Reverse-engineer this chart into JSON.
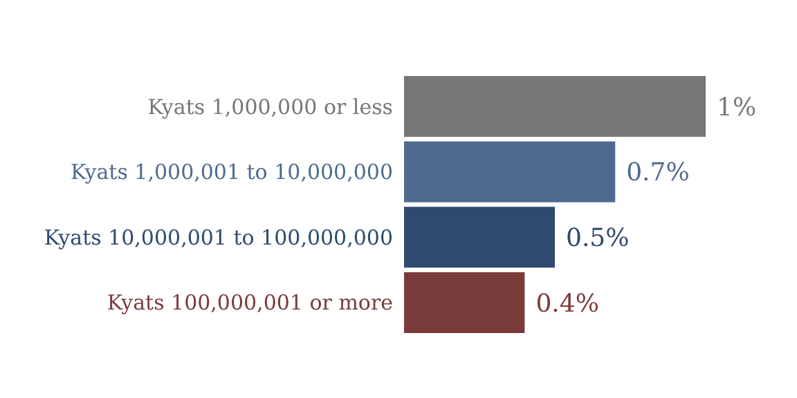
{
  "chart_data": {
    "type": "bar",
    "orientation": "horizontal",
    "categories": [
      "Kyats 1,000,000 or less",
      "Kyats 1,000,001 to 10,000,000",
      "Kyats 10,000,001 to 100,000,000",
      "Kyats 100,000,001 or more"
    ],
    "values": [
      1,
      0.7,
      0.5,
      0.4
    ],
    "value_labels": [
      "1%",
      "0.7%",
      "0.5%",
      "0.4%"
    ],
    "colors": [
      "#767676",
      "#4f6a8f",
      "#2e4a6e",
      "#7a3b3b"
    ]
  }
}
